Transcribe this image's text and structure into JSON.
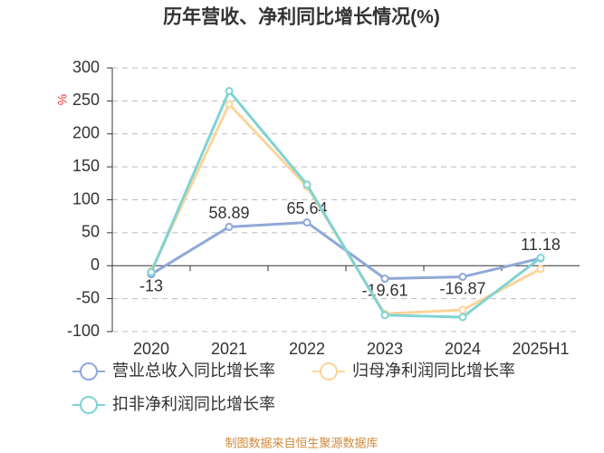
{
  "chart_data": {
    "type": "line",
    "title": "历年营收、净利同比增长情况(%)",
    "y_label": "%",
    "categories": [
      "2020",
      "2021",
      "2022",
      "2023",
      "2024",
      "2025H1"
    ],
    "series": [
      {
        "name": "营业总收入同比增长率",
        "color": "#8fa8d8",
        "values": [
          -13,
          58.89,
          65.64,
          -19.61,
          -16.87,
          11.18
        ],
        "show_labels": true
      },
      {
        "name": "归母净利润同比增长率",
        "color": "#fdd49a",
        "values": [
          -8,
          245,
          120,
          -73,
          -67,
          -5
        ],
        "show_labels": false
      },
      {
        "name": "扣非净利润同比增长率",
        "color": "#7fd3d3",
        "values": [
          -10,
          265,
          123,
          -75,
          -78,
          12
        ],
        "show_labels": false
      }
    ],
    "ylim": [
      -100,
      300
    ],
    "yticks": [
      -100,
      -50,
      0,
      50,
      100,
      150,
      200,
      250,
      300
    ],
    "grid": true,
    "source": "制图数据来自恒生聚源数据库"
  }
}
